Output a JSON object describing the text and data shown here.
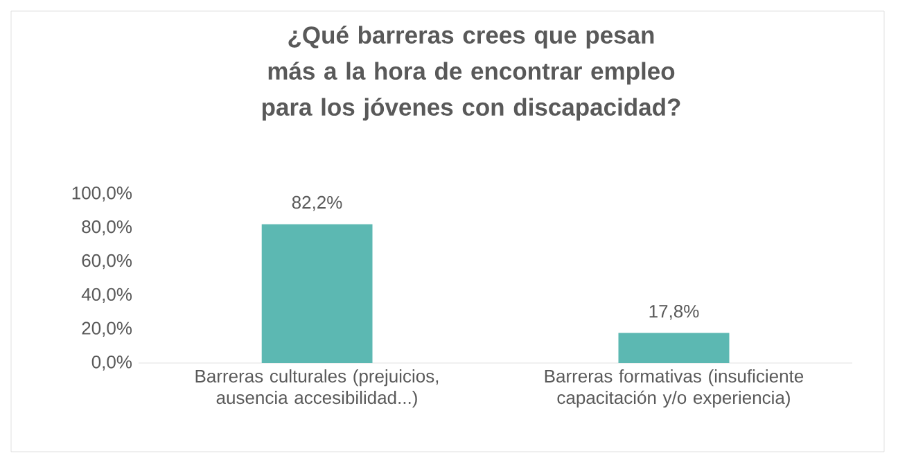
{
  "chart_data": {
    "type": "bar",
    "title": "¿Qué barreras crees que pesan más a la hora de encontrar empleo para los jóvenes con discapacidad?",
    "categories": [
      "Barreras culturales (prejuicios, ausencia accesibilidad...)",
      "Barreras formativas (insuficiente capacitación y/o experiencia)"
    ],
    "values": [
      82.2,
      17.8
    ],
    "value_labels": [
      "82,2%",
      "17,8%"
    ],
    "color": "#5cb8b2",
    "ylim": [
      0,
      100
    ],
    "yticks": [
      {
        "value": 0,
        "label": "0,0%"
      },
      {
        "value": 20,
        "label": "20,0%"
      },
      {
        "value": 40,
        "label": "40,0%"
      },
      {
        "value": 60,
        "label": "60,0%"
      },
      {
        "value": 80,
        "label": "80,0%"
      },
      {
        "value": 100,
        "label": "100,0%"
      }
    ]
  }
}
